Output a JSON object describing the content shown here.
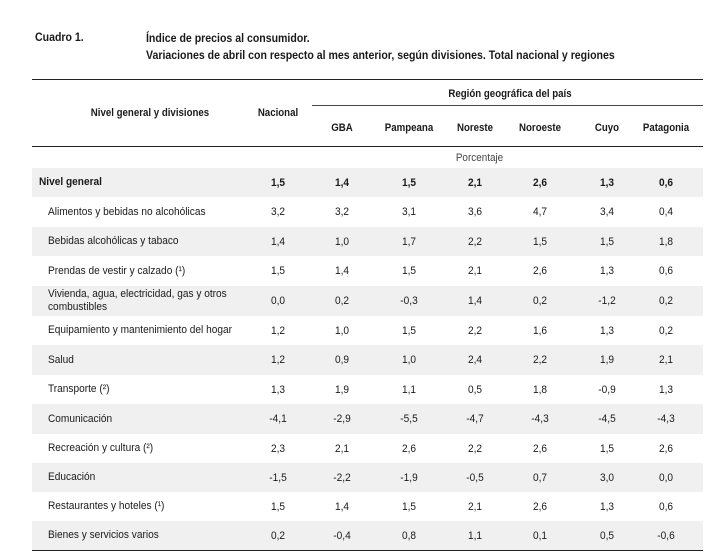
{
  "caption": {
    "label": "Cuadro 1.",
    "title_line1": "Índice de precios al consumidor.",
    "title_line2": "Variaciones de abril con respecto al mes anterior, según divisiones. Total nacional y regiones"
  },
  "table": {
    "header_divisions": "Nivel general y divisiones",
    "header_nacional": "Nacional",
    "header_region_group": "Región geográfica del país",
    "region_columns": [
      "GBA",
      "Pampeana",
      "Noreste",
      "Noroeste",
      "Cuyo",
      "Patagonia"
    ],
    "unit": "Porcentaje",
    "rows": [
      {
        "name": "Nivel general",
        "values": [
          "1,5",
          "1,4",
          "1,5",
          "2,1",
          "2,6",
          "1,3",
          "0,6"
        ]
      },
      {
        "name": "Alimentos y bebidas no alcohólicas",
        "values": [
          "3,2",
          "3,2",
          "3,1",
          "3,6",
          "4,7",
          "3,4",
          "0,4"
        ]
      },
      {
        "name": "Bebidas alcohólicas y tabaco",
        "values": [
          "1,4",
          "1,0",
          "1,7",
          "2,2",
          "1,5",
          "1,5",
          "1,8"
        ]
      },
      {
        "name": "Prendas de vestir y calzado (¹)",
        "values": [
          "1,5",
          "1,4",
          "1,5",
          "2,1",
          "2,6",
          "1,3",
          "0,6"
        ]
      },
      {
        "name": "Vivienda, agua, electricidad, gas y otros combustibles",
        "values": [
          "0,0",
          "0,2",
          "-0,3",
          "1,4",
          "0,2",
          "-1,2",
          "0,2"
        ]
      },
      {
        "name": "Equipamiento y mantenimiento del hogar",
        "values": [
          "1,2",
          "1,0",
          "1,5",
          "2,2",
          "1,6",
          "1,3",
          "0,2"
        ]
      },
      {
        "name": "Salud",
        "values": [
          "1,2",
          "0,9",
          "1,0",
          "2,4",
          "2,2",
          "1,9",
          "2,1"
        ]
      },
      {
        "name": "Transporte (²)",
        "values": [
          "1,3",
          "1,9",
          "1,1",
          "0,5",
          "1,8",
          "-0,9",
          "1,3"
        ]
      },
      {
        "name": "Comunicación",
        "values": [
          "-4,1",
          "-2,9",
          "-5,5",
          "-4,7",
          "-4,3",
          "-4,5",
          "-4,3"
        ]
      },
      {
        "name": "Recreación y cultura (²)",
        "values": [
          "2,3",
          "2,1",
          "2,6",
          "2,2",
          "2,6",
          "1,5",
          "2,6"
        ]
      },
      {
        "name": "Educación",
        "values": [
          "-1,5",
          "-2,2",
          "-1,9",
          "-0,5",
          "0,7",
          "3,0",
          "0,0"
        ]
      },
      {
        "name": "Restaurantes y hoteles (¹)",
        "values": [
          "1,5",
          "1,4",
          "1,5",
          "2,1",
          "2,6",
          "1,3",
          "0,6"
        ]
      },
      {
        "name": "Bienes y servicios varios",
        "values": [
          "0,2",
          "-0,4",
          "0,8",
          "1,1",
          "0,1",
          "0,5",
          "-0,6"
        ]
      }
    ]
  }
}
